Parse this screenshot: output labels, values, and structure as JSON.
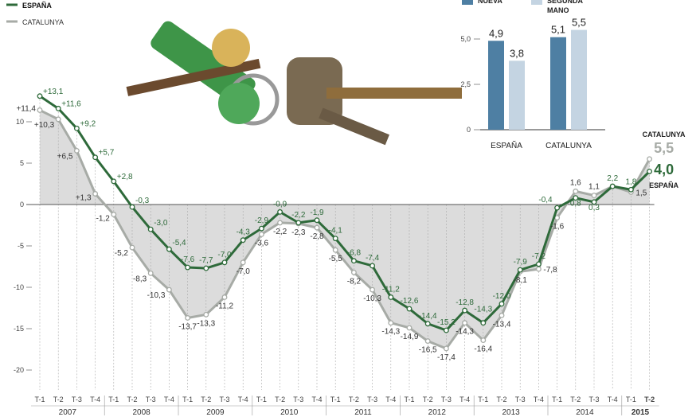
{
  "legend": {
    "espana": "ESPAÑA",
    "catalunya": "CATALUNYA"
  },
  "colors": {
    "espana": "#2e6a3a",
    "catalunya": "#a7aba6",
    "shade": "#dcdcdc",
    "inset_nueva": "#4e7fa3",
    "inset_segunda": "#c4d4e2"
  },
  "chart_data": [
    {
      "type": "line",
      "title": "",
      "ylim": [
        -21,
        13.5
      ],
      "yticks": [
        10,
        5,
        0,
        -5,
        -10,
        -15,
        -20
      ],
      "ytick_labels": [
        "10",
        "5",
        "0",
        "-5",
        "-10",
        "-15",
        "-20"
      ],
      "x": [
        "T-1",
        "T-2",
        "T-3",
        "T-4",
        "T-1",
        "T-2",
        "T-3",
        "T-4",
        "T-1",
        "T-2",
        "T-3",
        "T-4",
        "T-1",
        "T-2",
        "T-3",
        "T-4",
        "T-1",
        "T-2",
        "T-3",
        "T-4",
        "T-1",
        "T-2",
        "T-3",
        "T-4",
        "T-1",
        "T-2",
        "T-3",
        "T-4",
        "T-1",
        "T-2",
        "T-3",
        "T-4",
        "T-1",
        "T-2"
      ],
      "years": [
        "2007",
        "2008",
        "2009",
        "2010",
        "2011",
        "2012",
        "2013",
        "2014",
        "2015"
      ],
      "series": [
        {
          "name": "ESPAÑA",
          "values": [
            13.1,
            11.6,
            9.2,
            5.7,
            2.8,
            -0.3,
            -3.0,
            -5.4,
            -7.6,
            -7.7,
            -7.0,
            -4.3,
            -2.9,
            -0.9,
            -2.2,
            -1.9,
            -4.1,
            -6.8,
            -7.4,
            -11.2,
            -12.6,
            -14.4,
            -15.2,
            -12.8,
            -14.3,
            -12.0,
            -7.9,
            -7.2,
            -0.4,
            0.8,
            0.3,
            2.2,
            1.8,
            4.0
          ],
          "labels": [
            "+13,1",
            "+11,6",
            "+9,2",
            "+5,7",
            "+2,8",
            "-0,3",
            "-3,0",
            "-5,4",
            "-7,6",
            "-7,7",
            "-7,0",
            "-4,3",
            "-2,9",
            "-0,9",
            "-2,2",
            "-1,9",
            "-4,1",
            "-6,8",
            "-7,4",
            "-11,2",
            "-12,6",
            "-14,4",
            "-15,2",
            "-12,8",
            "-14,3",
            "-12,0",
            "-7,9",
            "-7,2",
            "-0,4",
            "0,8",
            "0,3",
            "2,2",
            "1,8",
            "4,0"
          ]
        },
        {
          "name": "CATALUNYA",
          "values": [
            11.4,
            10.3,
            6.5,
            1.3,
            -1.2,
            -5.2,
            -8.3,
            -10.3,
            -13.7,
            -13.3,
            -11.2,
            -7.0,
            -3.6,
            -2.2,
            -2.3,
            -2.8,
            -5.5,
            -8.2,
            -10.3,
            -14.3,
            -14.9,
            -16.5,
            -17.4,
            -14.3,
            -16.4,
            -13.4,
            -8.1,
            -7.8,
            -1.6,
            1.6,
            1.1,
            2.2,
            1.5,
            5.5
          ],
          "labels": [
            "+11,4",
            "+10,3",
            "+6,5",
            "+1,3",
            "-1,2",
            "-5,2",
            "-8,3",
            "-10,3",
            "-13,7",
            "-13,3",
            "-11,2",
            "-7,0",
            "-3,6",
            "-2,2",
            "-2,3",
            "-2,8",
            "-5,5",
            "-8,2",
            "-10,3",
            "-14,3",
            "-14,9",
            "-16,5",
            "-17,4",
            "-14,3",
            "-16,4",
            "-13,4",
            "-8,1",
            "-7,8",
            "-1,6",
            "1,6",
            "1,1",
            "",
            "1,5",
            "5,5"
          ]
        }
      ],
      "end_labels": {
        "catalunya_name": "CATALUNYA",
        "catalunya_value": "5,5",
        "espana_value": "4,0",
        "espana_name": "ESPAÑA"
      }
    },
    {
      "type": "bar",
      "categories": [
        "ESPAÑA",
        "CATALUNYA"
      ],
      "series": [
        {
          "name": "NUEVA",
          "values": [
            4.9,
            5.1
          ],
          "labels": [
            "4,9",
            "5,1"
          ]
        },
        {
          "name": "SEGUNDA MANO",
          "values": [
            3.8,
            5.5
          ],
          "labels": [
            "3,8",
            "5,5"
          ]
        }
      ],
      "ylim": [
        0,
        6
      ],
      "yticks": [
        "0",
        "2,5",
        "5,0"
      ]
    }
  ]
}
